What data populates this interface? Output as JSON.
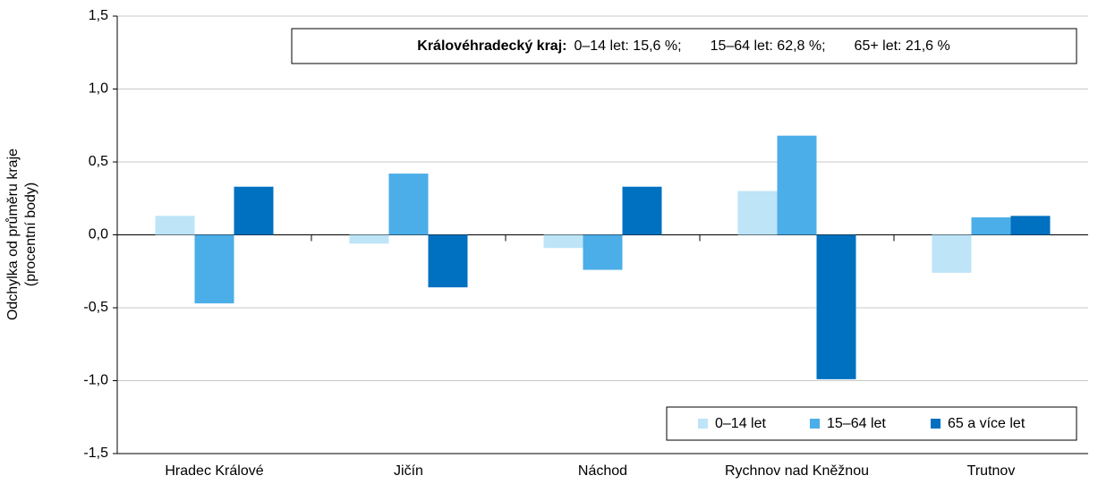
{
  "chart_data": {
    "type": "bar",
    "y_label": [
      "Odchylka od průměru kraje",
      "(procentní body)"
    ],
    "annotation": {
      "label": "Královéhradecký kraj:",
      "items": [
        "0–14 let: 15,6 %;",
        "15–64 let: 62,8 %;",
        "65+ let: 21,6 %"
      ]
    },
    "categories": [
      "Hradec Králové",
      "Jičín",
      "Náchod",
      "Rychnov nad Kněžnou",
      "Trutnov"
    ],
    "series": [
      {
        "name": "0–14 let",
        "color": "#bde4f7",
        "values": [
          0.13,
          -0.06,
          -0.09,
          0.3,
          -0.26
        ]
      },
      {
        "name": "15–64 let",
        "color": "#4baee8",
        "values": [
          -0.47,
          0.42,
          -0.24,
          0.68,
          0.12
        ]
      },
      {
        "name": "65 a více let",
        "color": "#0070c0",
        "values": [
          0.33,
          -0.36,
          0.33,
          -0.99,
          0.13
        ]
      }
    ],
    "ylim": [
      -1.5,
      1.5
    ],
    "yticks": [
      {
        "value": -1.5,
        "label": "-1,5"
      },
      {
        "value": -1.0,
        "label": "-1,0"
      },
      {
        "value": -0.5,
        "label": "-0,5"
      },
      {
        "value": 0,
        "label": "0,0"
      },
      {
        "value": 0.5,
        "label": "0,5"
      },
      {
        "value": 1.0,
        "label": "1,0"
      },
      {
        "value": 1.5,
        "label": "1,5"
      }
    ],
    "grid": true,
    "legend": "lower right"
  }
}
